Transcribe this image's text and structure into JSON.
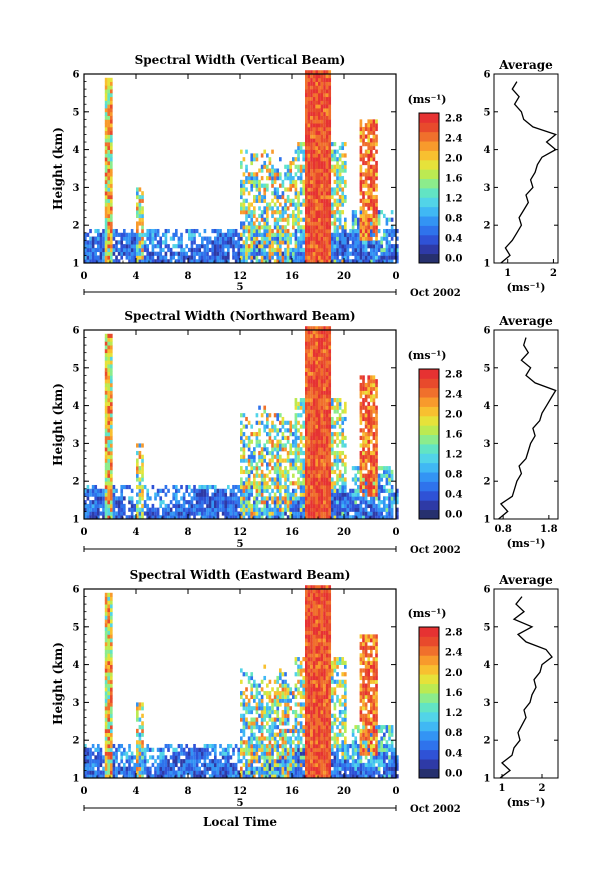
{
  "chart_data": [
    {
      "type": "heatmap",
      "title": "Spectral Width (Vertical Beam)",
      "ylabel": "Height (km)",
      "xlabel": "",
      "xticks": [
        "0",
        "4",
        "8",
        "12",
        "16",
        "20",
        "0"
      ],
      "yticks": [
        "1",
        "2",
        "3",
        "4",
        "5",
        "6"
      ],
      "date_label": "5",
      "date_right": "Oct 2002",
      "colorbar": {
        "unit": "(ms⁻¹)",
        "ticks": [
          "0.0",
          "0.4",
          "0.8",
          "1.2",
          "1.6",
          "2.0",
          "2.4",
          "2.8"
        ],
        "range": [
          0,
          3.0
        ]
      },
      "profile": {
        "title": "Average",
        "xlabel": "(ms⁻¹)",
        "xticks": [
          "1",
          "2"
        ],
        "xrange": [
          0.7,
          2.1
        ],
        "heights": [
          1.0,
          1.2,
          1.4,
          1.6,
          1.8,
          2.0,
          2.2,
          2.4,
          2.6,
          2.8,
          3.0,
          3.2,
          3.4,
          3.6,
          3.8,
          4.0,
          4.2,
          4.4,
          4.6,
          4.8,
          5.0,
          5.2,
          5.4,
          5.6,
          5.8
        ],
        "values": [
          0.85,
          1.05,
          0.95,
          1.1,
          1.2,
          1.3,
          1.25,
          1.35,
          1.45,
          1.4,
          1.55,
          1.5,
          1.6,
          1.65,
          1.75,
          2.05,
          1.85,
          2.05,
          1.55,
          1.35,
          1.3,
          1.15,
          1.25,
          1.1,
          1.2
        ]
      }
    },
    {
      "type": "heatmap",
      "title": "Spectral Width (Northward Beam)",
      "ylabel": "Height (km)",
      "xlabel": "",
      "xticks": [
        "0",
        "4",
        "8",
        "12",
        "16",
        "20",
        "0"
      ],
      "yticks": [
        "1",
        "2",
        "3",
        "4",
        "5",
        "6"
      ],
      "date_label": "5",
      "date_right": "Oct 2002",
      "colorbar": {
        "unit": "(ms⁻¹)",
        "ticks": [
          "0.0",
          "0.4",
          "0.8",
          "1.2",
          "1.6",
          "2.0",
          "2.4",
          "2.8"
        ],
        "range": [
          0,
          3.0
        ]
      },
      "profile": {
        "title": "Average",
        "xlabel": "(ms⁻¹)",
        "xticks": [
          "0.8",
          "1.8"
        ],
        "xrange": [
          0.6,
          2.0
        ],
        "heights": [
          1.0,
          1.2,
          1.4,
          1.6,
          1.8,
          2.0,
          2.2,
          2.4,
          2.6,
          2.8,
          3.0,
          3.2,
          3.4,
          3.6,
          3.8,
          4.0,
          4.2,
          4.4,
          4.6,
          4.8,
          5.0,
          5.2,
          5.4,
          5.6,
          5.8
        ],
        "values": [
          0.7,
          0.9,
          0.75,
          1.0,
          1.05,
          1.1,
          1.2,
          1.15,
          1.3,
          1.35,
          1.4,
          1.5,
          1.45,
          1.6,
          1.65,
          1.75,
          1.85,
          1.95,
          1.5,
          1.3,
          1.4,
          1.2,
          1.35,
          1.25,
          1.3
        ]
      }
    },
    {
      "type": "heatmap",
      "title": "Spectral Width (Eastward Beam)",
      "ylabel": "Height (km)",
      "xlabel": "Local Time",
      "xticks": [
        "0",
        "4",
        "8",
        "12",
        "16",
        "20",
        "0"
      ],
      "yticks": [
        "1",
        "2",
        "3",
        "4",
        "5",
        "6"
      ],
      "date_label": "5",
      "date_right": "Oct 2002",
      "colorbar": {
        "unit": "(ms⁻¹)",
        "ticks": [
          "0.0",
          "0.4",
          "0.8",
          "1.2",
          "1.6",
          "2.0",
          "2.4",
          "2.8"
        ],
        "range": [
          0,
          3.0
        ]
      },
      "profile": {
        "title": "Average",
        "xlabel": "(ms⁻¹)",
        "xticks": [
          "1",
          "2"
        ],
        "xrange": [
          0.8,
          2.4
        ],
        "heights": [
          1.0,
          1.2,
          1.4,
          1.6,
          1.8,
          2.0,
          2.2,
          2.4,
          2.6,
          2.8,
          3.0,
          3.2,
          3.4,
          3.6,
          3.8,
          4.0,
          4.2,
          4.4,
          4.6,
          4.8,
          5.0,
          5.2,
          5.4,
          5.6,
          5.8
        ],
        "values": [
          0.95,
          1.2,
          1.0,
          1.25,
          1.3,
          1.45,
          1.4,
          1.5,
          1.6,
          1.55,
          1.7,
          1.75,
          1.85,
          1.8,
          1.95,
          2.0,
          2.25,
          2.1,
          1.6,
          1.4,
          1.75,
          1.3,
          1.55,
          1.35,
          1.5
        ]
      }
    }
  ]
}
